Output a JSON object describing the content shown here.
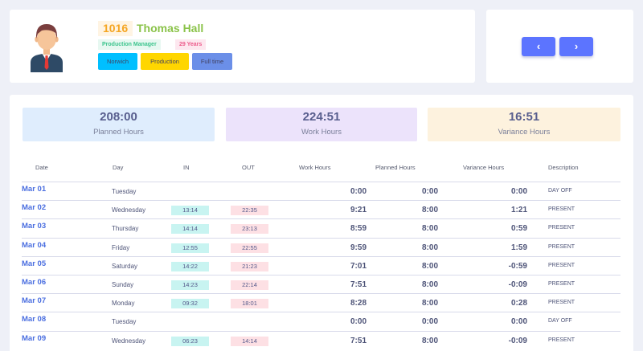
{
  "employee": {
    "id": "1016",
    "name": "Thomas Hall",
    "role": "Production Manager",
    "age": "29 Years",
    "location": "Norwich",
    "department": "Production",
    "employment_type": "Full time",
    "avatar_icon": "businessman-avatar-icon"
  },
  "navigation": {
    "prev_icon": "‹",
    "next_icon": "›",
    "accent_color": "#5c74ff"
  },
  "summary": {
    "planned": {
      "value": "208:00",
      "label": "Planned Hours"
    },
    "work": {
      "value": "224:51",
      "label": "Work Hours"
    },
    "variance": {
      "value": "16:51",
      "label": "Variance Hours"
    }
  },
  "table": {
    "headers": {
      "date": "Date",
      "day": "Day",
      "in": "IN",
      "out": "OUT",
      "work": "Work Hours",
      "planned": "Planned Hours",
      "variance": "Variance Hours",
      "description": "Description"
    },
    "rows": [
      {
        "date": "Mar 01",
        "day": "Tuesday",
        "in": "",
        "out": "",
        "work": "0:00",
        "planned": "0:00",
        "variance": "0:00",
        "description": "DAY OFF"
      },
      {
        "date": "Mar 02",
        "day": "Wednesday",
        "in": "13:14",
        "out": "22:35",
        "work": "9:21",
        "planned": "8:00",
        "variance": "1:21",
        "description": "PRESENT"
      },
      {
        "date": "Mar 03",
        "day": "Thursday",
        "in": "14:14",
        "out": "23:13",
        "work": "8:59",
        "planned": "8:00",
        "variance": "0:59",
        "description": "PRESENT"
      },
      {
        "date": "Mar 04",
        "day": "Friday",
        "in": "12:55",
        "out": "22:55",
        "work": "9:59",
        "planned": "8:00",
        "variance": "1:59",
        "description": "PRESENT"
      },
      {
        "date": "Mar 05",
        "day": "Saturday",
        "in": "14:22",
        "out": "21:23",
        "work": "7:01",
        "planned": "8:00",
        "variance": "-0:59",
        "description": "PRESENT"
      },
      {
        "date": "Mar 06",
        "day": "Sunday",
        "in": "14:23",
        "out": "22:14",
        "work": "7:51",
        "planned": "8:00",
        "variance": "-0:09",
        "description": "PRESENT"
      },
      {
        "date": "Mar 07",
        "day": "Monday",
        "in": "09:32",
        "out": "18:01",
        "work": "8:28",
        "planned": "8:00",
        "variance": "0:28",
        "description": "PRESENT"
      },
      {
        "date": "Mar 08",
        "day": "Tuesday",
        "in": "",
        "out": "",
        "work": "0:00",
        "planned": "0:00",
        "variance": "0:00",
        "description": "DAY OFF"
      },
      {
        "date": "Mar 09",
        "day": "Wednesday",
        "in": "06:23",
        "out": "14:14",
        "work": "7:51",
        "planned": "8:00",
        "variance": "-0:09",
        "description": "PRESENT"
      }
    ]
  }
}
